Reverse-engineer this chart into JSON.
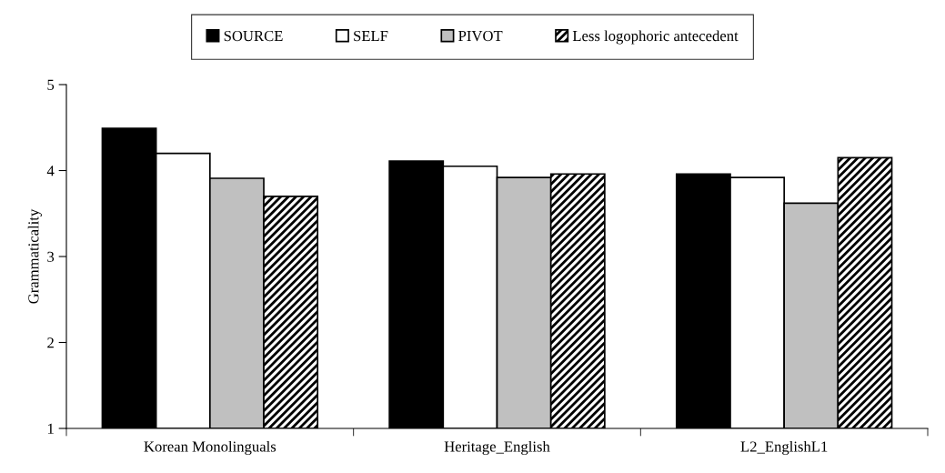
{
  "chart_data": {
    "type": "bar",
    "ylabel": "Grammaticality",
    "categories": [
      "Korean Monolinguals",
      "Heritage_English",
      "L2_EnglishL1"
    ],
    "series": [
      {
        "name": "SOURCE",
        "color": "#000000",
        "values": [
          4.49,
          4.11,
          3.96
        ]
      },
      {
        "name": "SELF",
        "color": "#ffffff",
        "values": [
          4.2,
          4.05,
          3.92
        ]
      },
      {
        "name": "PIVOT",
        "color": "#c0c0c0",
        "values": [
          3.91,
          3.92,
          3.62
        ]
      },
      {
        "name": "Less logophoric antecedent",
        "color": "#000000",
        "values": [
          3.7,
          3.96,
          4.15
        ]
      }
    ],
    "ylim": [
      1,
      5
    ],
    "yticks": [
      1,
      2,
      3,
      4,
      5
    ],
    "grid": false,
    "legend": "top"
  }
}
